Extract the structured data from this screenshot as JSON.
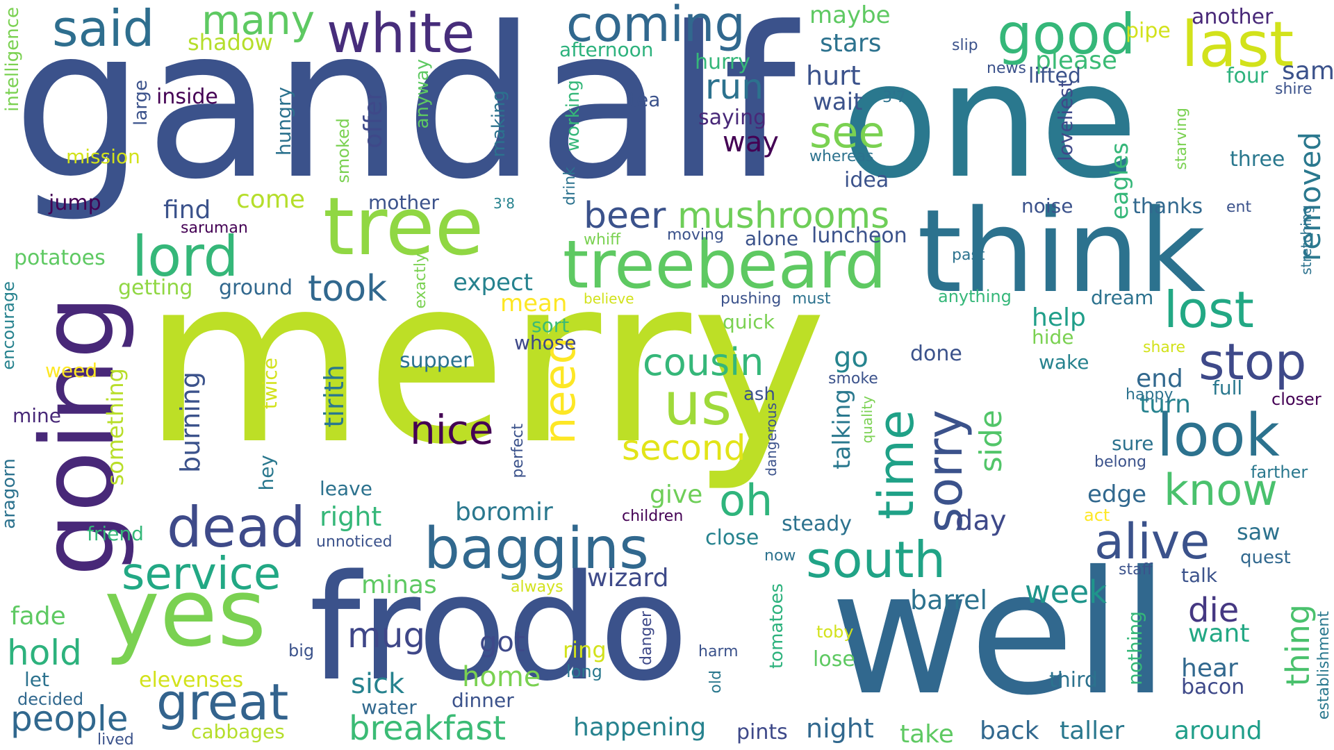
{
  "words": [
    {
      "text": "merry",
      "color": "#bddf26"
    },
    {
      "text": "gandalf",
      "color": "#3b528b"
    },
    {
      "text": "one",
      "color": "#2a788e"
    },
    {
      "text": "frodo",
      "color": "#3b528b"
    },
    {
      "text": "well",
      "color": "#31688e"
    },
    {
      "text": "think",
      "color": "#2c728e"
    },
    {
      "text": "going",
      "color": "#482878"
    },
    {
      "text": "tree",
      "color": "#90d743"
    },
    {
      "text": "yes",
      "color": "#7ad151"
    },
    {
      "text": "treebeard",
      "color": "#5ec962"
    },
    {
      "text": "white",
      "color": "#472d7b"
    },
    {
      "text": "coming",
      "color": "#31688e"
    },
    {
      "text": "good",
      "color": "#35b779"
    },
    {
      "text": "last",
      "color": "#d2e21b"
    },
    {
      "text": "said",
      "color": "#2e6e8e"
    },
    {
      "text": "many",
      "color": "#5ec962"
    },
    {
      "text": "lord",
      "color": "#35b779"
    },
    {
      "text": "us",
      "color": "#9fda3a"
    },
    {
      "text": "time",
      "color": "#1fa187"
    },
    {
      "text": "sorry",
      "color": "#3b528b"
    },
    {
      "text": "dead",
      "color": "#3e4a89"
    },
    {
      "text": "baggins",
      "color": "#31688e"
    },
    {
      "text": "south",
      "color": "#20a386"
    },
    {
      "text": "alive",
      "color": "#3b528b"
    },
    {
      "text": "look",
      "color": "#2c728e"
    },
    {
      "text": "stop",
      "color": "#3e4989"
    },
    {
      "text": "lost",
      "color": "#22a884"
    },
    {
      "text": "know",
      "color": "#4ac16d"
    },
    {
      "text": "great",
      "color": "#33638d"
    },
    {
      "text": "service",
      "color": "#22a884"
    },
    {
      "text": "need",
      "color": "#fde725"
    },
    {
      "text": "mushrooms",
      "color": "#6ece58"
    },
    {
      "text": "cousin",
      "color": "#35b779"
    },
    {
      "text": "nice",
      "color": "#440154"
    },
    {
      "text": "second",
      "color": "#e2e418"
    },
    {
      "text": "oh",
      "color": "#2fb47c"
    },
    {
      "text": "see",
      "color": "#7ad151"
    },
    {
      "text": "beer",
      "color": "#3b528b"
    },
    {
      "text": "took",
      "color": "#31688e"
    },
    {
      "text": "run",
      "color": "#2c728e"
    },
    {
      "text": "mug",
      "color": "#3f4788"
    },
    {
      "text": "hold",
      "color": "#2db27d"
    },
    {
      "text": "people",
      "color": "#31688e"
    },
    {
      "text": "breakfast",
      "color": "#3bbb75"
    },
    {
      "text": "week",
      "color": "#1f958b"
    },
    {
      "text": "die",
      "color": "#453882"
    },
    {
      "text": "thing",
      "color": "#4ac16d"
    },
    {
      "text": "removed",
      "color": "#2a788e"
    },
    {
      "text": "side",
      "color": "#52c569"
    },
    {
      "text": "tirith",
      "color": "#2a788e"
    },
    {
      "text": "burning",
      "color": "#3b528b"
    },
    {
      "text": "something",
      "color": "#b8de29"
    },
    {
      "text": "expect",
      "color": "#26828e"
    },
    {
      "text": "mean",
      "color": "#fde725"
    },
    {
      "text": "wizard",
      "color": "#3e4a89"
    },
    {
      "text": "minas",
      "color": "#5ec962"
    },
    {
      "text": "boromir",
      "color": "#2a788e"
    },
    {
      "text": "right",
      "color": "#35b779"
    },
    {
      "text": "give",
      "color": "#6ece58"
    },
    {
      "text": "go",
      "color": "#25848e"
    },
    {
      "text": "talking",
      "color": "#2a788e"
    },
    {
      "text": "barrel",
      "color": "#2c728e"
    },
    {
      "text": "want",
      "color": "#22a884"
    },
    {
      "text": "hear",
      "color": "#31688e"
    },
    {
      "text": "end",
      "color": "#31688e"
    },
    {
      "text": "turn",
      "color": "#26828e"
    },
    {
      "text": "edge",
      "color": "#31688e"
    },
    {
      "text": "help",
      "color": "#1f9e89"
    },
    {
      "text": "eagles",
      "color": "#35b779"
    },
    {
      "text": "three",
      "color": "#2a788e"
    },
    {
      "text": "sam",
      "color": "#3b528b"
    },
    {
      "text": "please",
      "color": "#3bbb75"
    },
    {
      "text": "hurt",
      "color": "#3b528b"
    },
    {
      "text": "wait",
      "color": "#3b528b"
    },
    {
      "text": "stars",
      "color": "#2c728e"
    },
    {
      "text": "maybe",
      "color": "#5ec962"
    },
    {
      "text": "shadow",
      "color": "#b5de2b"
    },
    {
      "text": "afternoon",
      "color": "#2db27d"
    },
    {
      "text": "hurry",
      "color": "#35b779"
    },
    {
      "text": "saying",
      "color": "#482878"
    },
    {
      "text": "way",
      "color": "#440154"
    },
    {
      "text": "tea",
      "color": "#3b528b"
    },
    {
      "text": "inside",
      "color": "#440154"
    },
    {
      "text": "large",
      "color": "#3b528b"
    },
    {
      "text": "hungry",
      "color": "#2c728e"
    },
    {
      "text": "offer",
      "color": "#3e4989"
    },
    {
      "text": "anyway",
      "color": "#5ec962"
    },
    {
      "text": "making",
      "color": "#2c728e"
    },
    {
      "text": "working",
      "color": "#35b779"
    },
    {
      "text": "drink",
      "color": "#2c728e"
    },
    {
      "text": "smoked",
      "color": "#7ad151"
    },
    {
      "text": "mission",
      "color": "#d2e21b"
    },
    {
      "text": "intelligence",
      "color": "#7ad151"
    },
    {
      "text": "jump",
      "color": "#440154"
    },
    {
      "text": "find",
      "color": "#3b528b"
    },
    {
      "text": "come",
      "color": "#b5de2b"
    },
    {
      "text": "saruman",
      "color": "#440154"
    },
    {
      "text": "mother",
      "color": "#3b528b"
    },
    {
      "text": "potatoes",
      "color": "#5ec962"
    },
    {
      "text": "getting",
      "color": "#90d743"
    },
    {
      "text": "ground",
      "color": "#31688e"
    },
    {
      "text": "encourage",
      "color": "#26828e"
    },
    {
      "text": "aragorn",
      "color": "#2c728e"
    },
    {
      "text": "weed",
      "color": "#fde725"
    },
    {
      "text": "mine",
      "color": "#482878"
    },
    {
      "text": "friend",
      "color": "#35b779"
    },
    {
      "text": "fade",
      "color": "#5ec962"
    },
    {
      "text": "let",
      "color": "#2c728e"
    },
    {
      "text": "decided",
      "color": "#31688e"
    },
    {
      "text": "lived",
      "color": "#3b528b"
    },
    {
      "text": "cabbages",
      "color": "#b5de2b"
    },
    {
      "text": "water",
      "color": "#31688e"
    },
    {
      "text": "dinner",
      "color": "#3b528b"
    },
    {
      "text": "sick",
      "color": "#26828e"
    },
    {
      "text": "home",
      "color": "#7ad151"
    },
    {
      "text": "elevenses",
      "color": "#d2e21b"
    },
    {
      "text": "big",
      "color": "#3b528b"
    },
    {
      "text": "got",
      "color": "#3e4989"
    },
    {
      "text": "ring",
      "color": "#d2e21b"
    },
    {
      "text": "long",
      "color": "#2a788e"
    },
    {
      "text": "happening",
      "color": "#26828e"
    },
    {
      "text": "pints",
      "color": "#3e4989"
    },
    {
      "text": "night",
      "color": "#31688e"
    },
    {
      "text": "take",
      "color": "#5ec962"
    },
    {
      "text": "back",
      "color": "#31688e"
    },
    {
      "text": "taller",
      "color": "#2a788e"
    },
    {
      "text": "around",
      "color": "#1f9e89"
    },
    {
      "text": "third",
      "color": "#2c728e"
    },
    {
      "text": "bacon",
      "color": "#3e4989"
    },
    {
      "text": "nothing",
      "color": "#35b779"
    },
    {
      "text": "establishment",
      "color": "#2a788e"
    },
    {
      "text": "quest",
      "color": "#31688e"
    },
    {
      "text": "saw",
      "color": "#2c728e"
    },
    {
      "text": "talk",
      "color": "#3b528b"
    },
    {
      "text": "staff",
      "color": "#3b528b"
    },
    {
      "text": "lose",
      "color": "#5ec962"
    },
    {
      "text": "toby",
      "color": "#d2e21b"
    },
    {
      "text": "tomatoes",
      "color": "#2db27d"
    },
    {
      "text": "harm",
      "color": "#3b528b"
    },
    {
      "text": "old",
      "color": "#2a788e"
    },
    {
      "text": "danger",
      "color": "#3e4989"
    },
    {
      "text": "always",
      "color": "#d2e21b"
    },
    {
      "text": "now",
      "color": "#2c728e"
    },
    {
      "text": "unnoticed",
      "color": "#3b528b"
    },
    {
      "text": "leave",
      "color": "#2c728e"
    },
    {
      "text": "hey",
      "color": "#2a788e"
    },
    {
      "text": "twice",
      "color": "#d2e21b"
    },
    {
      "text": "perfect",
      "color": "#3b528b"
    },
    {
      "text": "children",
      "color": "#440154"
    },
    {
      "text": "close",
      "color": "#26828e"
    },
    {
      "text": "steady",
      "color": "#2c728e"
    },
    {
      "text": "day",
      "color": "#3e4989"
    },
    {
      "text": "act",
      "color": "#fde725"
    },
    {
      "text": "belong",
      "color": "#3b528b"
    },
    {
      "text": "farther",
      "color": "#2a788e"
    },
    {
      "text": "sure",
      "color": "#2c728e"
    },
    {
      "text": "happy",
      "color": "#2c728e"
    },
    {
      "text": "closer",
      "color": "#440154"
    },
    {
      "text": "full",
      "color": "#2a788e"
    },
    {
      "text": "share",
      "color": "#d2e21b"
    },
    {
      "text": "hide",
      "color": "#7ad151"
    },
    {
      "text": "wake",
      "color": "#26828e"
    },
    {
      "text": "done",
      "color": "#3b528b"
    },
    {
      "text": "ash",
      "color": "#3b528b"
    },
    {
      "text": "smoke",
      "color": "#3b528b"
    },
    {
      "text": "quality",
      "color": "#7ad151"
    },
    {
      "text": "dangerous",
      "color": "#3b528b"
    },
    {
      "text": "supper",
      "color": "#2c728e"
    },
    {
      "text": "whose",
      "color": "#3e4989"
    },
    {
      "text": "sort",
      "color": "#3bbb75"
    },
    {
      "text": "quick",
      "color": "#7ad151"
    },
    {
      "text": "pushing",
      "color": "#3b528b"
    },
    {
      "text": "must",
      "color": "#2c728e"
    },
    {
      "text": "believe",
      "color": "#d2e21b"
    },
    {
      "text": "exactly",
      "color": "#7ad151"
    },
    {
      "text": "whiff",
      "color": "#7ad151"
    },
    {
      "text": "moving",
      "color": "#3b528b"
    },
    {
      "text": "alone",
      "color": "#3b528b"
    },
    {
      "text": "luncheon",
      "color": "#3b528b"
    },
    {
      "text": "past",
      "color": "#2c728e"
    },
    {
      "text": "anything",
      "color": "#35b779"
    },
    {
      "text": "dream",
      "color": "#2c728e"
    },
    {
      "text": "noise",
      "color": "#3b528b"
    },
    {
      "text": "thanks",
      "color": "#31688e"
    },
    {
      "text": "ent",
      "color": "#3b528b"
    },
    {
      "text": "loveliest",
      "color": "#3e4989"
    },
    {
      "text": "idea",
      "color": "#3b528b"
    },
    {
      "text": "whereas",
      "color": "#2c728e"
    },
    {
      "text": "3'7",
      "color": "#2c728e"
    },
    {
      "text": "3'8",
      "color": "#26828e"
    },
    {
      "text": "slip",
      "color": "#3b528b"
    },
    {
      "text": "news",
      "color": "#3b528b"
    },
    {
      "text": "lifted",
      "color": "#3b528b"
    },
    {
      "text": "four",
      "color": "#2db27d"
    },
    {
      "text": "another",
      "color": "#482878"
    },
    {
      "text": "pipe",
      "color": "#d2e21b"
    },
    {
      "text": "shire",
      "color": "#3b528b"
    },
    {
      "text": "starving",
      "color": "#7ad151"
    },
    {
      "text": "stretching",
      "color": "#2c728e"
    }
  ]
}
